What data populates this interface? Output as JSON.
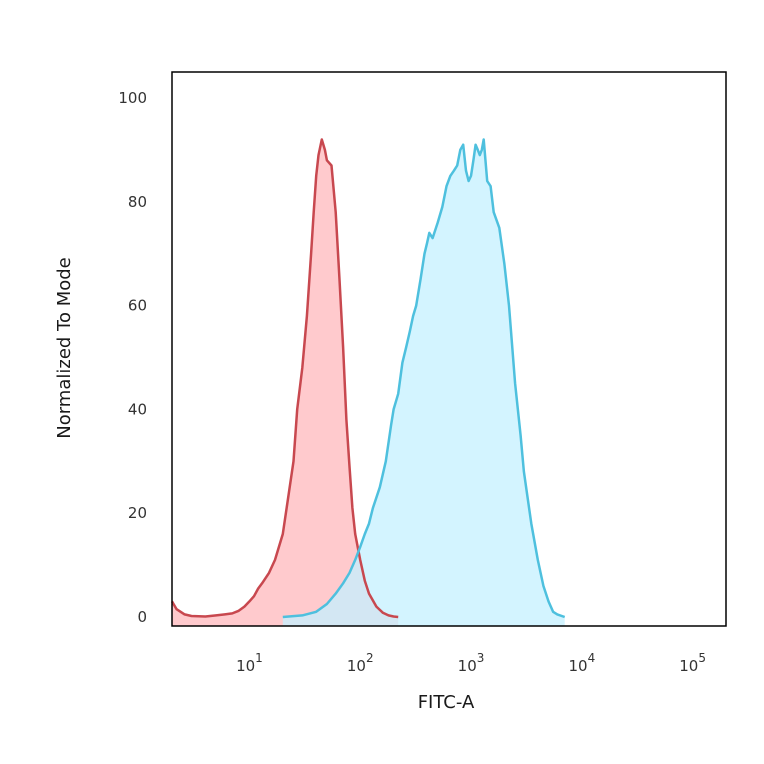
{
  "chart_data": {
    "type": "area",
    "xlabel": "FITC-A",
    "ylabel": "Normalized To Mode",
    "x_scale": "log",
    "xlim": [
      2,
      200000
    ],
    "ylim": [
      0,
      100
    ],
    "grid": false,
    "y_ticks": [
      "0",
      "20",
      "40",
      "60",
      "80",
      "100"
    ],
    "y_tick_values": [
      0,
      20,
      40,
      60,
      80,
      100
    ],
    "x_tick_values": [
      10,
      100,
      1000,
      10000,
      100000
    ],
    "x_ticks": [
      {
        "base": "10",
        "exp": "1"
      },
      {
        "base": "10",
        "exp": "2"
      },
      {
        "base": "10",
        "exp": "3"
      },
      {
        "base": "10",
        "exp": "4"
      },
      {
        "base": "10",
        "exp": "5"
      }
    ],
    "series": [
      {
        "color": "#c8484f",
        "fill": "#ffb8bc",
        "x": [
          2,
          2.2,
          2.6,
          3,
          4,
          5,
          6,
          7,
          8,
          9,
          10,
          11,
          12,
          13,
          15,
          17,
          20,
          22,
          25,
          27,
          30,
          33,
          36,
          38,
          40,
          42,
          45,
          48,
          50,
          55,
          60,
          65,
          70,
          75,
          80,
          85,
          90,
          100,
          110,
          120,
          140,
          160,
          180,
          200,
          220
        ],
        "y": [
          3,
          1.5,
          0.5,
          0.2,
          0.1,
          0.3,
          0.5,
          0.7,
          1.2,
          2,
          3,
          4,
          5.5,
          6.5,
          8.5,
          11,
          16,
          22,
          30,
          40,
          48,
          58,
          70,
          78,
          85,
          89,
          92,
          90,
          88,
          87,
          78,
          65,
          52,
          38,
          29,
          21,
          16,
          11,
          7,
          4.5,
          2,
          0.8,
          0.3,
          0.1,
          0
        ]
      },
      {
        "color": "#4ec0de",
        "fill": "#c4f0ff",
        "x": [
          20,
          30,
          40,
          50,
          60,
          70,
          80,
          90,
          100,
          110,
          120,
          130,
          150,
          170,
          190,
          200,
          220,
          240,
          260,
          280,
          300,
          320,
          350,
          380,
          400,
          420,
          450,
          500,
          550,
          600,
          650,
          700,
          750,
          800,
          850,
          900,
          950,
          1000,
          1050,
          1100,
          1150,
          1200,
          1250,
          1300,
          1400,
          1500,
          1600,
          1800,
          2000,
          2200,
          2500,
          2800,
          3000,
          3500,
          4000,
          4500,
          5000,
          5500,
          6000,
          7000
        ],
        "y": [
          0,
          0.3,
          1,
          2.5,
          4.5,
          6.5,
          8.5,
          11,
          13.5,
          16,
          18,
          21,
          25,
          30,
          37,
          40,
          43,
          49,
          52,
          55,
          58,
          60,
          65,
          70,
          72,
          74,
          73,
          76,
          79,
          83,
          85,
          86,
          87,
          90,
          91,
          86,
          84,
          85,
          88,
          91,
          90,
          89,
          90,
          92,
          84,
          83,
          78,
          75,
          68,
          60,
          45,
          35,
          28,
          18,
          11,
          6,
          3,
          1,
          0.5,
          0
        ]
      }
    ]
  }
}
